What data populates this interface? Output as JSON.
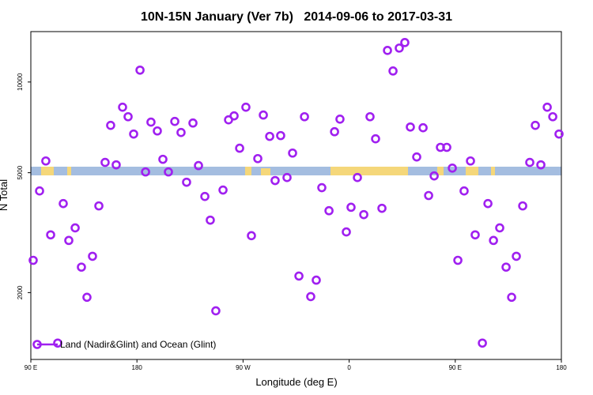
{
  "chart_data": {
    "type": "scatter",
    "title": "10N-15N January (Ver 7b)   2014-09-06 to 2017-03-31",
    "x_label": "Longitude (deg E)",
    "y_label": "N Total",
    "log_y": true,
    "legend": "bottom-left",
    "xlim": [
      90,
      540
    ],
    "ylim": [
      1200,
      14700
    ],
    "xticks": [
      {
        "value": 90,
        "label": "90 E"
      },
      180,
      {
        "value": 270,
        "label": "90 W"
      },
      {
        "value": 360,
        "label": "0"
      },
      {
        "value": 450,
        "label": "90 E"
      },
      {
        "value": 540,
        "label": "180"
      }
    ],
    "yticks": [
      2000,
      5000,
      10000
    ],
    "x": [
      92.0,
      97.4,
      102.7,
      106.8,
      112.8,
      117.5,
      122.2,
      127.6,
      132.9,
      137.6,
      142.3,
      147.7,
      153.0,
      157.7,
      162.4,
      167.8,
      172.5,
      177.2,
      182.6,
      187.3,
      191.9,
      197.3,
      202.0,
      206.7,
      212.1,
      217.4,
      222.1,
      227.5,
      232.2,
      237.6,
      242.2,
      246.9,
      253.0,
      257.7,
      262.4,
      267.1,
      272.4,
      277.1,
      282.5,
      287.2,
      292.6,
      297.2,
      301.9,
      307.3,
      312.0,
      317.4,
      322.1,
      327.4,
      332.1,
      336.8,
      342.9,
      347.6,
      352.2,
      357.6,
      361.6,
      367.0,
      372.4,
      377.7,
      382.4,
      387.8,
      392.5,
      397.2,
      402.5,
      407.2,
      411.9,
      417.3,
      422.7,
      427.4,
      432.1,
      437.4,
      442.8,
      447.5,
      452.2,
      457.5,
      462.9,
      466.9,
      473.0,
      477.7,
      482.4,
      487.7,
      493.1,
      497.8,
      501.8,
      507.2,
      513.2,
      517.9,
      522.6,
      528.0,
      532.7,
      538.0
    ],
    "series": [
      {
        "name": "Land (Nadir&Glint) and Ocean (Glint)",
        "color": "#a020f0",
        "values": [
          2560,
          4350,
          5470,
          3110,
          1360,
          3950,
          2980,
          3280,
          2430,
          1930,
          2640,
          3880,
          5410,
          7180,
          5310,
          8250,
          7670,
          6720,
          10950,
          5030,
          7360,
          6880,
          5540,
          5030,
          7400,
          6800,
          4650,
          7310,
          5280,
          4170,
          3480,
          1740,
          4380,
          7490,
          7720,
          6030,
          8250,
          3090,
          5570,
          7770,
          6600,
          4710,
          6640,
          4820,
          5810,
          2270,
          7670,
          1940,
          2200,
          4460,
          3740,
          6840,
          7530,
          3180,
          3840,
          4820,
          3630,
          7670,
          6480,
          3810,
          12730,
          10880,
          12960,
          13520,
          7090,
          5640,
          7050,
          4200,
          4880,
          6070,
          6070,
          5180,
          2560,
          4350,
          5470,
          3110,
          1360,
          3950,
          2980,
          3280,
          2430,
          1930,
          2640,
          3880,
          5410,
          7180,
          5310,
          8250,
          7670,
          6720
        ]
      }
    ]
  }
}
